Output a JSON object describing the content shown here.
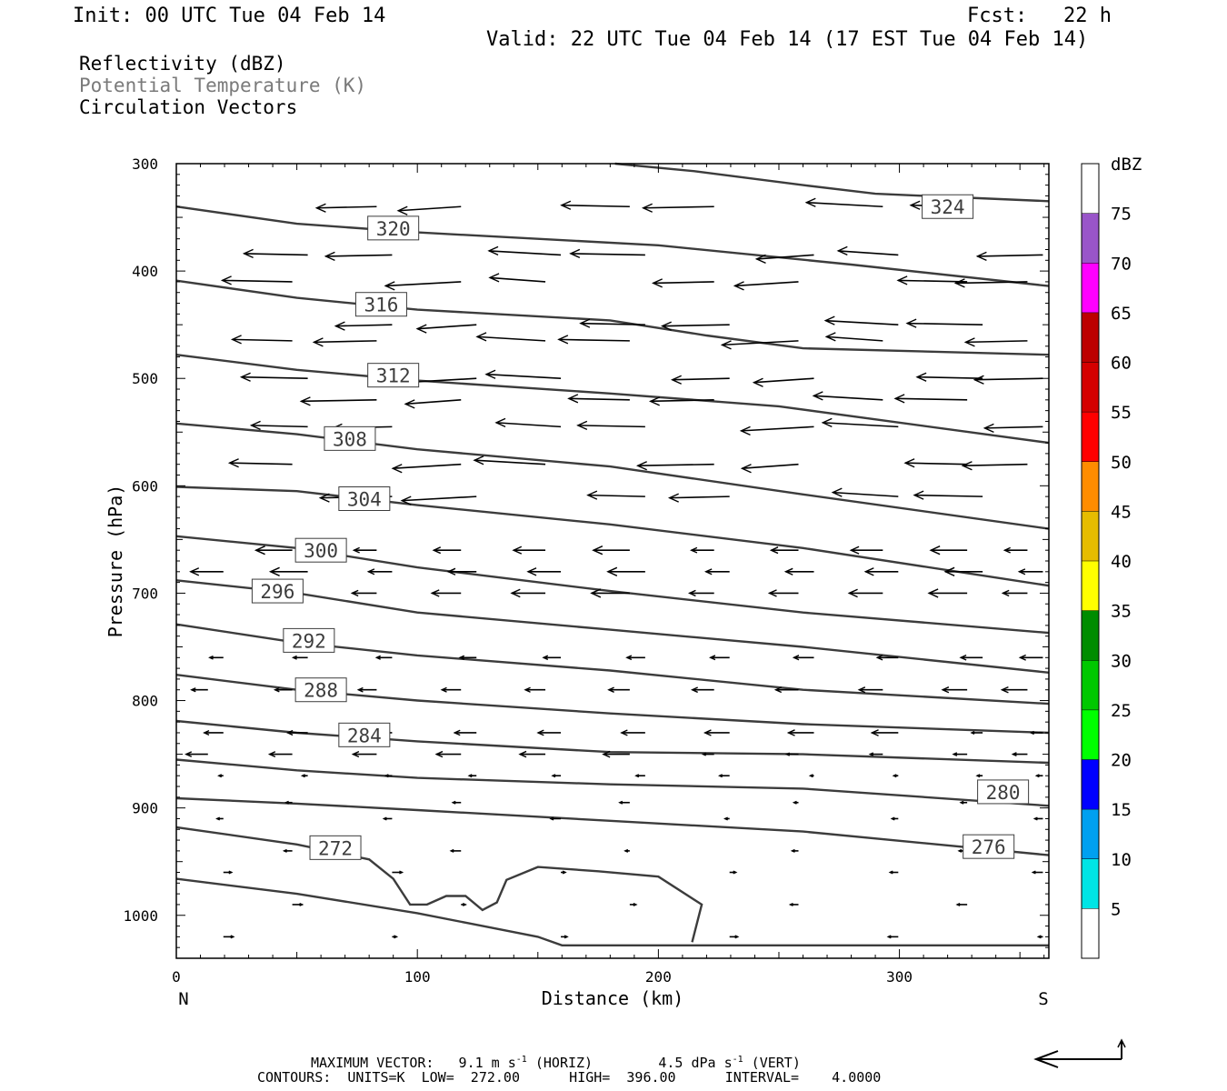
{
  "header": {
    "init": "Init: 00 UTC Tue 04 Feb 14",
    "fcst": "Fcst:   22 h",
    "valid": "Valid: 22 UTC Tue 04 Feb 14 (17 EST Tue 04 Feb 14)"
  },
  "fields": [
    {
      "label": "Reflectivity (dBZ)",
      "color": "#000000"
    },
    {
      "label": "Potential Temperature (K)",
      "color": "#7a7a7a"
    },
    {
      "label": "Circulation Vectors",
      "color": "#000000"
    }
  ],
  "chart_data": {
    "type": "cross-section",
    "xlabel": "Distance (km)",
    "ylabel": "Pressure (hPa)",
    "xlim": [
      0,
      362
    ],
    "ylim": [
      1040,
      300
    ],
    "x_ticks": [
      0,
      100,
      200,
      300
    ],
    "y_ticks": [
      300,
      400,
      500,
      600,
      700,
      800,
      900,
      1000
    ],
    "x_end_labels": {
      "left": "N",
      "right": "S"
    },
    "theta_contours": [
      {
        "label": "324",
        "points": [
          [
            182,
            300
          ],
          [
            215,
            307
          ],
          [
            260,
            320
          ],
          [
            290,
            328
          ],
          [
            362,
            335
          ]
        ],
        "label_at": [
          320,
          340
        ]
      },
      {
        "label": "320",
        "points": [
          [
            0,
            340
          ],
          [
            50,
            356
          ],
          [
            100,
            364
          ],
          [
            200,
            376
          ],
          [
            280,
            394
          ],
          [
            362,
            414
          ]
        ],
        "label_at": [
          90,
          360
        ]
      },
      {
        "label": "316",
        "points": [
          [
            0,
            409
          ],
          [
            50,
            425
          ],
          [
            100,
            436
          ],
          [
            180,
            446
          ],
          [
            220,
            460
          ],
          [
            260,
            472
          ],
          [
            362,
            478
          ]
        ],
        "label_at": [
          85,
          431
        ]
      },
      {
        "label": "312",
        "points": [
          [
            0,
            478
          ],
          [
            50,
            492
          ],
          [
            100,
            502
          ],
          [
            180,
            514
          ],
          [
            250,
            526
          ],
          [
            362,
            560
          ]
        ],
        "label_at": [
          90,
          497
        ]
      },
      {
        "label": "308",
        "points": [
          [
            0,
            542
          ],
          [
            50,
            552
          ],
          [
            100,
            566
          ],
          [
            180,
            582
          ],
          [
            260,
            608
          ],
          [
            362,
            640
          ]
        ],
        "label_at": [
          72,
          556
        ]
      },
      {
        "label": "304",
        "points": [
          [
            0,
            601
          ],
          [
            50,
            605
          ],
          [
            100,
            618
          ],
          [
            180,
            636
          ],
          [
            260,
            658
          ],
          [
            362,
            693
          ]
        ],
        "label_at": [
          78,
          612
        ]
      },
      {
        "label": "300",
        "points": [
          [
            0,
            647
          ],
          [
            50,
            658
          ],
          [
            100,
            676
          ],
          [
            180,
            698
          ],
          [
            260,
            718
          ],
          [
            362,
            737
          ]
        ],
        "label_at": [
          60,
          660
        ]
      },
      {
        "label": "296",
        "points": [
          [
            0,
            688
          ],
          [
            50,
            700
          ],
          [
            100,
            718
          ],
          [
            180,
            734
          ],
          [
            260,
            750
          ],
          [
            362,
            774
          ]
        ],
        "label_at": [
          42,
          698
        ]
      },
      {
        "label": "292",
        "points": [
          [
            0,
            729
          ],
          [
            50,
            746
          ],
          [
            100,
            758
          ],
          [
            180,
            772
          ],
          [
            260,
            790
          ],
          [
            362,
            803
          ]
        ],
        "label_at": [
          55,
          744
        ]
      },
      {
        "label": "288",
        "points": [
          [
            0,
            776
          ],
          [
            50,
            790
          ],
          [
            100,
            800
          ],
          [
            180,
            812
          ],
          [
            260,
            822
          ],
          [
            362,
            830
          ]
        ],
        "label_at": [
          60,
          790
        ]
      },
      {
        "label": "284",
        "points": [
          [
            0,
            819
          ],
          [
            50,
            830
          ],
          [
            100,
            838
          ],
          [
            180,
            848
          ],
          [
            260,
            850
          ],
          [
            362,
            858
          ]
        ],
        "label_at": [
          78,
          832
        ]
      },
      {
        "label": "280",
        "points": [
          [
            0,
            855
          ],
          [
            50,
            865
          ],
          [
            100,
            872
          ],
          [
            180,
            878
          ],
          [
            260,
            882
          ],
          [
            362,
            898
          ]
        ],
        "label_at": [
          343,
          885
        ]
      },
      {
        "label": "276",
        "points": [
          [
            0,
            891
          ],
          [
            50,
            896
          ],
          [
            100,
            902
          ],
          [
            180,
            912
          ],
          [
            260,
            922
          ],
          [
            362,
            944
          ]
        ],
        "label_at": [
          337,
          936
        ]
      },
      {
        "label": "272",
        "points": [
          [
            0,
            918
          ],
          [
            50,
            934
          ],
          [
            80,
            948
          ],
          [
            90,
            966
          ],
          [
            97,
            990
          ],
          [
            104,
            990
          ],
          [
            112,
            982
          ],
          [
            120,
            982
          ],
          [
            127,
            995
          ],
          [
            133,
            988
          ],
          [
            137,
            967
          ],
          [
            150,
            955
          ],
          [
            175,
            959
          ],
          [
            200,
            964
          ],
          [
            218,
            990
          ],
          [
            214,
            1025
          ]
        ],
        "label_at": [
          66,
          937
        ]
      },
      {
        "label": "",
        "points": [
          [
            0,
            966
          ],
          [
            50,
            980
          ],
          [
            100,
            998
          ],
          [
            150,
            1020
          ],
          [
            160,
            1028
          ],
          [
            362,
            1028
          ]
        ],
        "label_at": null
      }
    ],
    "colorbar": {
      "title": "dBZ",
      "labels": [
        "5",
        "10",
        "15",
        "20",
        "25",
        "30",
        "35",
        "40",
        "45",
        "50",
        "55",
        "60",
        "65",
        "70",
        "75"
      ],
      "colors": [
        "#ffffff",
        "#00e5e5",
        "#00a0f0",
        "#0000ff",
        "#00ff00",
        "#00c800",
        "#008c00",
        "#ffff00",
        "#e6bc00",
        "#ff8c00",
        "#ff0000",
        "#d40000",
        "#bc0000",
        "#ff00ff",
        "#9955c9",
        "#ffffff"
      ]
    }
  },
  "footer": {
    "line1": "MAXIMUM VECTOR:   9.1 m s",
    "line1_sup1": "-1",
    "line1_mid": " (HORIZ)        4.5 dPa s",
    "line1_sup2": "-1",
    "line1_end": " (VERT)",
    "line2": "CONTOURS:  UNITS=K  LOW=  272.00      HIGH=  396.00      INTERVAL=    4.0000"
  }
}
